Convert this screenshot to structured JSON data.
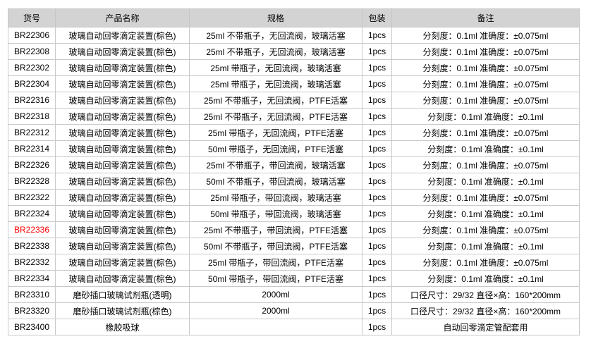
{
  "page": {
    "background": "#ffffff"
  },
  "table": {
    "header_bg": "#d3d3d3",
    "border_color": "#c9c9c9",
    "text_color": "#000000",
    "highlight_color": "#ff0000",
    "columns": [
      {
        "key": "code",
        "label": "货号"
      },
      {
        "key": "name",
        "label": "产品名称"
      },
      {
        "key": "spec",
        "label": "规格"
      },
      {
        "key": "pack",
        "label": "包装"
      },
      {
        "key": "note",
        "label": "备注"
      }
    ],
    "rows": [
      {
        "code": "BR22306",
        "name": "玻璃自动回零滴定装置(棕色)",
        "spec": "25ml 不带瓶子，无回流阀，玻璃活塞",
        "pack": "1pcs",
        "note": "分刻度：0.1ml 准确度：±0.075ml"
      },
      {
        "code": "BR22308",
        "name": "玻璃自动回零滴定装置(棕色)",
        "spec": "25ml 不带瓶子，无回流阀，玻璃活塞",
        "pack": "1pcs",
        "note": "分刻度：0.1ml 准确度：±0.075ml"
      },
      {
        "code": "BR22302",
        "name": "玻璃自动回零滴定装置(棕色)",
        "spec": "25ml 带瓶子，无回流阀，玻璃活塞",
        "pack": "1pcs",
        "note": "分刻度：0.1ml 准确度：±0.075ml"
      },
      {
        "code": "BR22304",
        "name": "玻璃自动回零滴定装置(棕色)",
        "spec": "25ml 带瓶子，无回流阀，玻璃活塞",
        "pack": "1pcs",
        "note": "分刻度：0.1ml 准确度：±0.075ml"
      },
      {
        "code": "BR22316",
        "name": "玻璃自动回零滴定装置(棕色)",
        "spec": "25ml 不带瓶子，无回流阀，PTFE活塞",
        "pack": "1pcs",
        "note": "分刻度：0.1ml 准确度：±0.075ml"
      },
      {
        "code": "BR22318",
        "name": "玻璃自动回零滴定装置(棕色)",
        "spec": "25ml 不带瓶子，无回流阀，PTFE活塞",
        "pack": "1pcs",
        "note": "分刻度：0.1ml 准确度：±0.1ml"
      },
      {
        "code": "BR22312",
        "name": "玻璃自动回零滴定装置(棕色)",
        "spec": "25ml 带瓶子，无回流阀，PTFE活塞",
        "pack": "1pcs",
        "note": "分刻度：0.1ml 准确度：±0.075ml"
      },
      {
        "code": "BR22314",
        "name": "玻璃自动回零滴定装置(棕色)",
        "spec": "50ml 带瓶子，无回流阀，PTFE活塞",
        "pack": "1pcs",
        "note": "分刻度：0.1ml 准确度：±0.1ml"
      },
      {
        "code": "BR22326",
        "name": "玻璃自动回零滴定装置(棕色)",
        "spec": "25ml 不带瓶子，带回流阀，玻璃活塞",
        "pack": "1pcs",
        "note": "分刻度：0.1ml 准确度：±0.075ml"
      },
      {
        "code": "BR22328",
        "name": "玻璃自动回零滴定装置(棕色)",
        "spec": "50ml 不带瓶子，带回流阀，玻璃活塞",
        "pack": "1pcs",
        "note": "分刻度：0.1ml 准确度：±0.1ml"
      },
      {
        "code": "BR22322",
        "name": "玻璃自动回零滴定装置(棕色)",
        "spec": "25ml 带瓶子，带回流阀，玻璃活塞",
        "pack": "1pcs",
        "note": "分刻度：0.1ml 准确度：±0.075ml"
      },
      {
        "code": "BR22324",
        "name": "玻璃自动回零滴定装置(棕色)",
        "spec": "50ml 带瓶子，带回流阀，玻璃活塞",
        "pack": "1pcs",
        "note": "分刻度：0.1ml 准确度：±0.1ml"
      },
      {
        "code": "BR22336",
        "name": "玻璃自动回零滴定装置(棕色)",
        "spec": "25ml 不带瓶子，带回流阀，PTFE活塞",
        "pack": "1pcs",
        "note": "分刻度：0.1ml 准确度：±0.075ml",
        "highlight": true
      },
      {
        "code": "BR22338",
        "name": "玻璃自动回零滴定装置(棕色)",
        "spec": "50ml 不带瓶子，带回流阀，PTFE活塞",
        "pack": "1pcs",
        "note": "分刻度：0.1ml 准确度：±0.1ml"
      },
      {
        "code": "BR22332",
        "name": "玻璃自动回零滴定装置(棕色)",
        "spec": "25ml 带瓶子，带回流阀，PTFE活塞",
        "pack": "1pcs",
        "note": "分刻度：0.1ml 准确度：±0.075ml"
      },
      {
        "code": "BR22334",
        "name": "玻璃自动回零滴定装置(棕色)",
        "spec": "50ml 带瓶子，带回流阀，PTFE活塞",
        "pack": "1pcs",
        "note": "分刻度：0.1ml 准确度：±0.1ml"
      },
      {
        "code": "BR23310",
        "name": "磨砂插口玻璃试剂瓶(透明)",
        "spec": "2000ml",
        "pack": "1pcs",
        "note": "口径尺寸：29/32 直径×高：160*200mm"
      },
      {
        "code": "BR23320",
        "name": "磨砂插口玻璃试剂瓶(棕色)",
        "spec": "2000ml",
        "pack": "1pcs",
        "note": "口径尺寸：29/32 直径×高：160*200mm"
      },
      {
        "code": "BR23400",
        "name": "橡胶吸球",
        "spec": "",
        "pack": "1pcs",
        "note": "自动回零滴定管配套用"
      }
    ]
  }
}
